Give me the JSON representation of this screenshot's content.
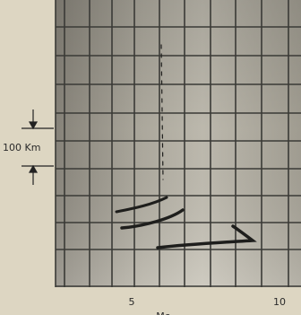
{
  "figure": {
    "scale_label": "100 Km",
    "x_ticks": [
      "5",
      "10"
    ],
    "x_unit": "Mc"
  }
}
